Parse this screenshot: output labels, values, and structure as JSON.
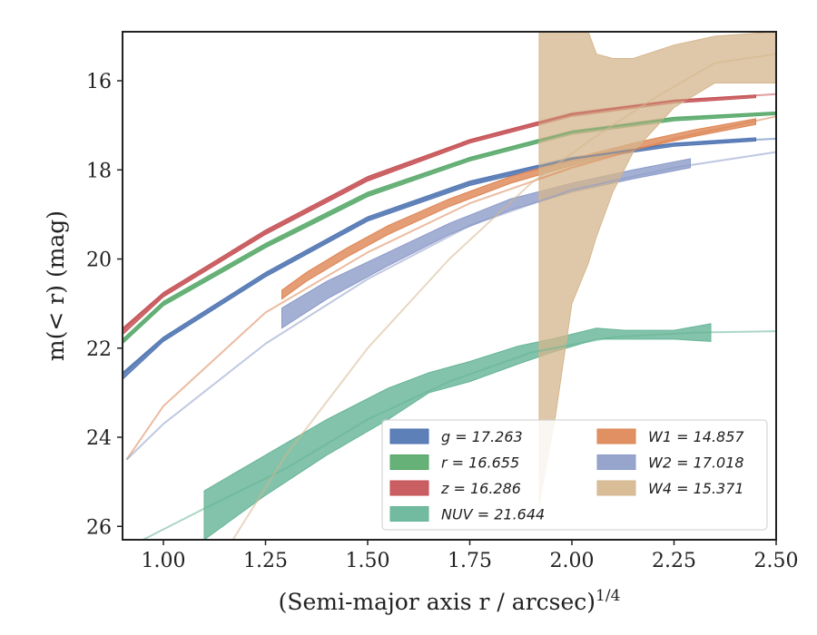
{
  "chart_data": {
    "type": "line",
    "xlabel": "(Semi-major axis r / arcsec)",
    "xlabel_sup": "1/4",
    "ylabel": "m(< r) (mag)",
    "xlim": [
      0.9,
      2.5
    ],
    "ylim": [
      26.3,
      14.9
    ],
    "y_inverted": true,
    "xticks": [
      "1.00",
      "1.25",
      "1.50",
      "1.75",
      "2.00",
      "2.25",
      "2.50"
    ],
    "xtick_values": [
      1.0,
      1.25,
      1.5,
      1.75,
      2.0,
      2.25,
      2.5
    ],
    "yticks": [
      "16",
      "18",
      "20",
      "22",
      "24",
      "26"
    ],
    "ytick_values": [
      16,
      18,
      20,
      22,
      24,
      26
    ],
    "grid": false,
    "legend_position": "lower-right",
    "series": [
      {
        "name": "g = 17.263",
        "color": "#4c72b0",
        "model_x": [
          0.9,
          1.0,
          1.25,
          1.5,
          1.75,
          2.0,
          2.25,
          2.5
        ],
        "model_y": [
          22.6,
          21.8,
          20.35,
          19.1,
          18.3,
          17.75,
          17.42,
          17.3
        ],
        "band_x": [
          0.9,
          1.0,
          1.25,
          1.5,
          1.75,
          2.0,
          2.25,
          2.45
        ],
        "band_upper": [
          22.55,
          21.75,
          20.3,
          19.05,
          18.25,
          17.72,
          17.4,
          17.28
        ],
        "band_lower": [
          22.7,
          21.85,
          20.4,
          19.15,
          18.35,
          17.8,
          17.47,
          17.35
        ]
      },
      {
        "name": "r = 16.655",
        "color": "#55a868",
        "model_x": [
          0.9,
          1.0,
          1.25,
          1.5,
          1.75,
          2.0,
          2.25,
          2.5
        ],
        "model_y": [
          21.85,
          21.0,
          19.7,
          18.55,
          17.75,
          17.15,
          16.85,
          16.72
        ],
        "band_x": [
          0.9,
          1.0,
          1.25,
          1.5,
          1.75,
          2.0,
          2.25,
          2.5
        ],
        "band_upper": [
          21.8,
          20.95,
          19.65,
          18.5,
          17.72,
          17.12,
          16.82,
          16.7
        ],
        "band_lower": [
          21.9,
          21.05,
          19.75,
          18.6,
          17.8,
          17.2,
          16.9,
          16.76
        ]
      },
      {
        "name": "z = 16.286",
        "color": "#c44e52",
        "model_x": [
          0.9,
          1.0,
          1.25,
          1.5,
          1.75,
          2.0,
          2.25,
          2.5
        ],
        "model_y": [
          21.6,
          20.8,
          19.4,
          18.2,
          17.35,
          16.75,
          16.45,
          16.3
        ],
        "band_x": [
          0.9,
          1.0,
          1.25,
          1.5,
          1.75,
          2.0,
          2.25,
          2.45
        ],
        "band_upper": [
          21.55,
          20.75,
          19.35,
          18.15,
          17.32,
          16.72,
          16.43,
          16.32
        ],
        "band_lower": [
          21.7,
          20.85,
          19.45,
          18.25,
          17.4,
          16.8,
          16.5,
          16.38
        ]
      },
      {
        "name": "NUV = 21.644",
        "color": "#64b496",
        "model_x": [
          0.95,
          1.1,
          1.3,
          1.5,
          1.7,
          1.9,
          2.1,
          2.3,
          2.5
        ],
        "model_y": [
          26.3,
          25.6,
          24.7,
          23.6,
          22.75,
          22.1,
          21.75,
          21.65,
          21.62
        ],
        "band_x": [
          1.1,
          1.25,
          1.4,
          1.55,
          1.65,
          1.75,
          1.87,
          1.95,
          2.06,
          2.13,
          2.25,
          2.34
        ],
        "band_upper": [
          25.2,
          24.4,
          23.6,
          22.9,
          22.55,
          22.3,
          21.95,
          21.8,
          21.55,
          21.6,
          21.6,
          21.45
        ],
        "band_lower": [
          26.3,
          25.3,
          24.4,
          23.6,
          23.0,
          22.75,
          22.35,
          22.1,
          21.8,
          21.8,
          21.8,
          21.85
        ]
      },
      {
        "name": "W1 = 14.857",
        "color": "#dd8452",
        "model_x": [
          0.91,
          1.0,
          1.25,
          1.5,
          1.75,
          2.0,
          2.25,
          2.5
        ],
        "model_y": [
          24.5,
          23.3,
          21.2,
          19.85,
          18.75,
          17.95,
          17.3,
          16.8
        ],
        "band_x": [
          1.29,
          1.35,
          1.45,
          1.55,
          1.7,
          1.85,
          2.0,
          2.15,
          2.3,
          2.45
        ],
        "band_upper": [
          20.7,
          20.3,
          19.75,
          19.25,
          18.65,
          18.15,
          17.75,
          17.4,
          17.1,
          16.85
        ],
        "band_lower": [
          20.9,
          20.5,
          19.95,
          19.45,
          18.82,
          18.3,
          17.9,
          17.55,
          17.25,
          16.98
        ]
      },
      {
        "name": "W2 = 17.018",
        "color": "#8c9bc8",
        "model_x": [
          0.91,
          1.0,
          1.25,
          1.5,
          1.75,
          2.0,
          2.25,
          2.5
        ],
        "model_y": [
          24.5,
          23.7,
          21.9,
          20.45,
          19.25,
          18.45,
          17.95,
          17.6
        ],
        "band_x": [
          1.29,
          1.4,
          1.55,
          1.7,
          1.85,
          2.0,
          2.15,
          2.29
        ],
        "band_upper": [
          21.1,
          20.5,
          19.85,
          19.2,
          18.65,
          18.3,
          18.0,
          17.75
        ],
        "band_lower": [
          21.55,
          20.9,
          20.15,
          19.45,
          18.9,
          18.5,
          18.2,
          17.95
        ]
      },
      {
        "name": "W4 = 15.371",
        "color": "#d4b68c",
        "model_x": [
          1.17,
          1.3,
          1.5,
          1.7,
          1.9,
          2.05,
          2.2,
          2.35,
          2.5
        ],
        "model_y": [
          26.3,
          24.4,
          22.0,
          20.0,
          18.3,
          17.3,
          16.4,
          15.6,
          15.4
        ],
        "band_x": [
          1.92,
          1.93,
          1.96,
          2.0,
          2.04,
          2.06,
          2.1,
          2.15,
          2.25,
          2.35,
          2.5
        ],
        "band_upper": [
          14.9,
          14.9,
          14.9,
          14.9,
          14.9,
          15.4,
          15.5,
          15.5,
          15.2,
          15.0,
          14.9
        ],
        "band_lower": [
          25.5,
          25.0,
          23.5,
          21.0,
          20.1,
          19.5,
          18.5,
          17.6,
          16.6,
          16.05,
          16.05
        ]
      }
    ]
  }
}
